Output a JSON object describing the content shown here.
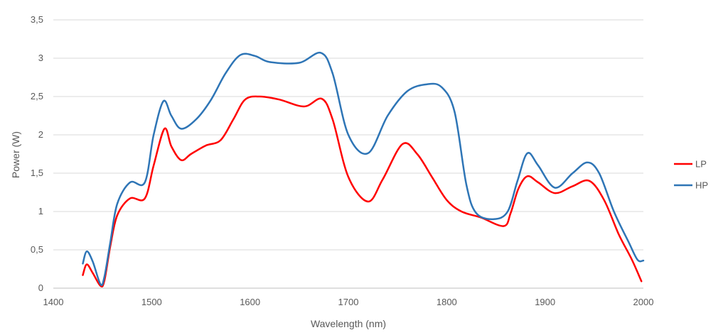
{
  "chart_data": {
    "type": "line",
    "title": "",
    "xlabel": "Wavelength (nm)",
    "ylabel": "Power (W)",
    "xlim": [
      1400,
      2000
    ],
    "ylim": [
      0,
      3.5
    ],
    "x_ticks": [
      "1400",
      "1500",
      "1600",
      "1700",
      "1800",
      "1900",
      "2000"
    ],
    "y_ticks": [
      "0",
      "0,5",
      "1",
      "1,5",
      "2",
      "2,5",
      "3",
      "3,5"
    ],
    "grid": "horizontal",
    "legend_position": "right",
    "series": [
      {
        "name": "LP",
        "color": "#ff0000",
        "points": [
          [
            1430,
            0.17
          ],
          [
            1434,
            0.31
          ],
          [
            1440,
            0.2
          ],
          [
            1448,
            0.03
          ],
          [
            1452,
            0.1
          ],
          [
            1458,
            0.55
          ],
          [
            1465,
            0.95
          ],
          [
            1478,
            1.17
          ],
          [
            1493,
            1.17
          ],
          [
            1502,
            1.6
          ],
          [
            1513,
            2.08
          ],
          [
            1520,
            1.85
          ],
          [
            1530,
            1.67
          ],
          [
            1540,
            1.75
          ],
          [
            1555,
            1.86
          ],
          [
            1570,
            1.93
          ],
          [
            1583,
            2.2
          ],
          [
            1595,
            2.46
          ],
          [
            1610,
            2.5
          ],
          [
            1630,
            2.46
          ],
          [
            1655,
            2.37
          ],
          [
            1673,
            2.47
          ],
          [
            1684,
            2.2
          ],
          [
            1700,
            1.45
          ],
          [
            1720,
            1.13
          ],
          [
            1735,
            1.42
          ],
          [
            1755,
            1.88
          ],
          [
            1770,
            1.75
          ],
          [
            1785,
            1.45
          ],
          [
            1800,
            1.15
          ],
          [
            1815,
            1.0
          ],
          [
            1835,
            0.92
          ],
          [
            1858,
            0.81
          ],
          [
            1865,
            0.98
          ],
          [
            1873,
            1.3
          ],
          [
            1882,
            1.46
          ],
          [
            1893,
            1.38
          ],
          [
            1910,
            1.24
          ],
          [
            1928,
            1.33
          ],
          [
            1945,
            1.4
          ],
          [
            1960,
            1.15
          ],
          [
            1975,
            0.7
          ],
          [
            1988,
            0.38
          ],
          [
            1998,
            0.09
          ]
        ]
      },
      {
        "name": "HP",
        "color": "#2e75b6",
        "points": [
          [
            1430,
            0.32
          ],
          [
            1434,
            0.48
          ],
          [
            1440,
            0.35
          ],
          [
            1448,
            0.05
          ],
          [
            1452,
            0.15
          ],
          [
            1458,
            0.6
          ],
          [
            1465,
            1.1
          ],
          [
            1478,
            1.38
          ],
          [
            1493,
            1.38
          ],
          [
            1502,
            2.0
          ],
          [
            1512,
            2.44
          ],
          [
            1520,
            2.25
          ],
          [
            1530,
            2.08
          ],
          [
            1545,
            2.2
          ],
          [
            1560,
            2.45
          ],
          [
            1575,
            2.8
          ],
          [
            1590,
            3.04
          ],
          [
            1605,
            3.03
          ],
          [
            1620,
            2.95
          ],
          [
            1650,
            2.94
          ],
          [
            1672,
            3.07
          ],
          [
            1684,
            2.8
          ],
          [
            1700,
            2.0
          ],
          [
            1720,
            1.76
          ],
          [
            1740,
            2.25
          ],
          [
            1760,
            2.57
          ],
          [
            1780,
            2.66
          ],
          [
            1795,
            2.62
          ],
          [
            1808,
            2.3
          ],
          [
            1820,
            1.35
          ],
          [
            1830,
            0.98
          ],
          [
            1848,
            0.9
          ],
          [
            1862,
            1.0
          ],
          [
            1872,
            1.4
          ],
          [
            1882,
            1.76
          ],
          [
            1893,
            1.6
          ],
          [
            1910,
            1.31
          ],
          [
            1928,
            1.5
          ],
          [
            1943,
            1.64
          ],
          [
            1955,
            1.5
          ],
          [
            1970,
            1.0
          ],
          [
            1985,
            0.6
          ],
          [
            1994,
            0.37
          ],
          [
            2000,
            0.36
          ]
        ]
      }
    ]
  }
}
